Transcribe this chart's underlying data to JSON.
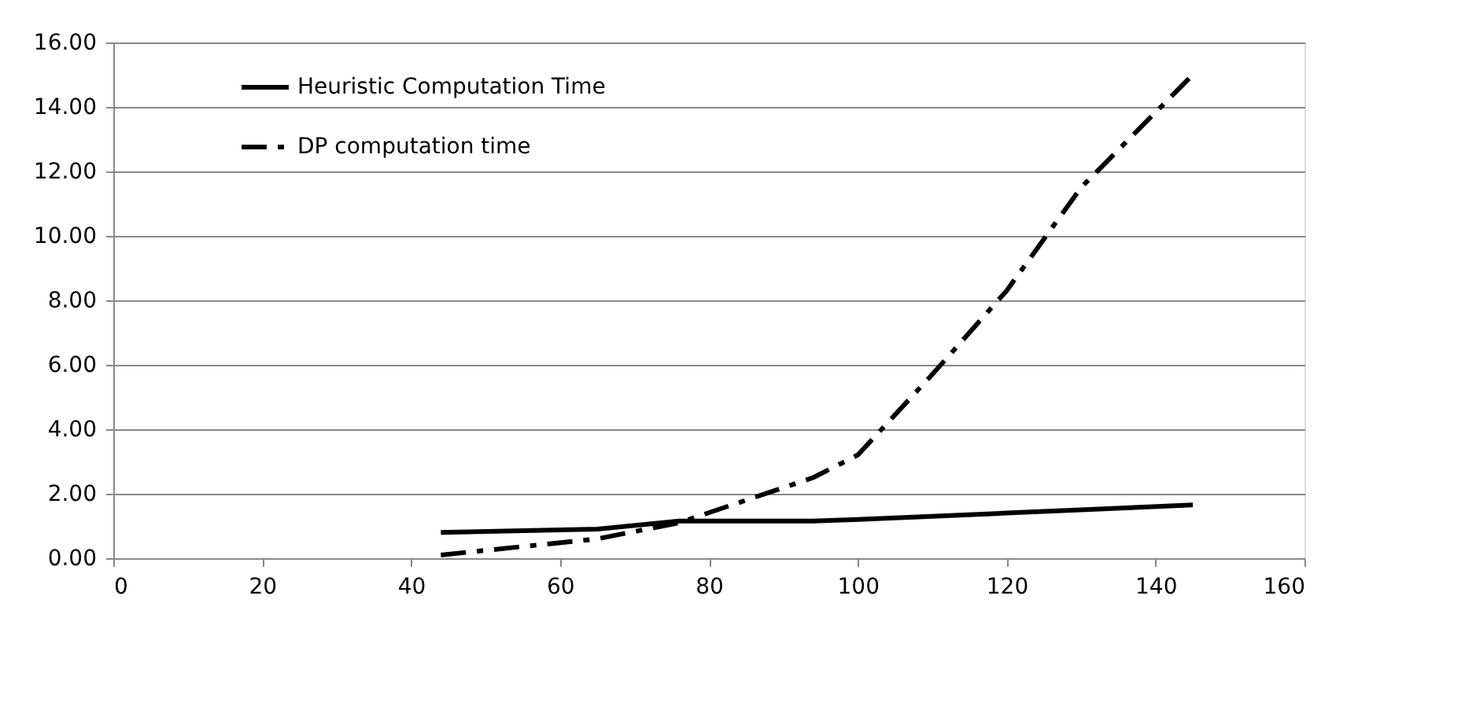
{
  "chart_data": {
    "type": "line",
    "x": [
      44,
      65,
      76,
      94,
      100,
      110,
      120,
      130,
      145
    ],
    "series": [
      {
        "name": "Heuristic Computation Time",
        "color": "#000000",
        "line_style": "solid",
        "values": [
          0.8,
          0.9,
          1.15,
          1.15,
          1.2,
          1.3,
          1.4,
          1.5,
          1.65
        ]
      },
      {
        "name": "DP computation time",
        "color": "#000000",
        "line_style": "dashdot",
        "values": [
          0.1,
          0.6,
          1.1,
          2.5,
          3.2,
          5.7,
          8.3,
          11.5,
          15.0
        ]
      }
    ],
    "xlim": [
      0,
      160
    ],
    "xticks": [
      0,
      20,
      40,
      60,
      80,
      100,
      120,
      140,
      160
    ],
    "ylim": [
      0,
      16
    ],
    "yticks": [
      {
        "value": 0,
        "label": "0.00"
      },
      {
        "value": 2,
        "label": "2.00"
      },
      {
        "value": 4,
        "label": "4.00"
      },
      {
        "value": 6,
        "label": "6.00"
      },
      {
        "value": 8,
        "label": "8.00"
      },
      {
        "value": 10,
        "label": "10.00"
      },
      {
        "value": 12,
        "label": "12.00"
      },
      {
        "value": 14,
        "label": "14.00"
      },
      {
        "value": 16,
        "label": "16.00"
      }
    ],
    "grid": "y",
    "legend": "top left",
    "marker": "none"
  }
}
